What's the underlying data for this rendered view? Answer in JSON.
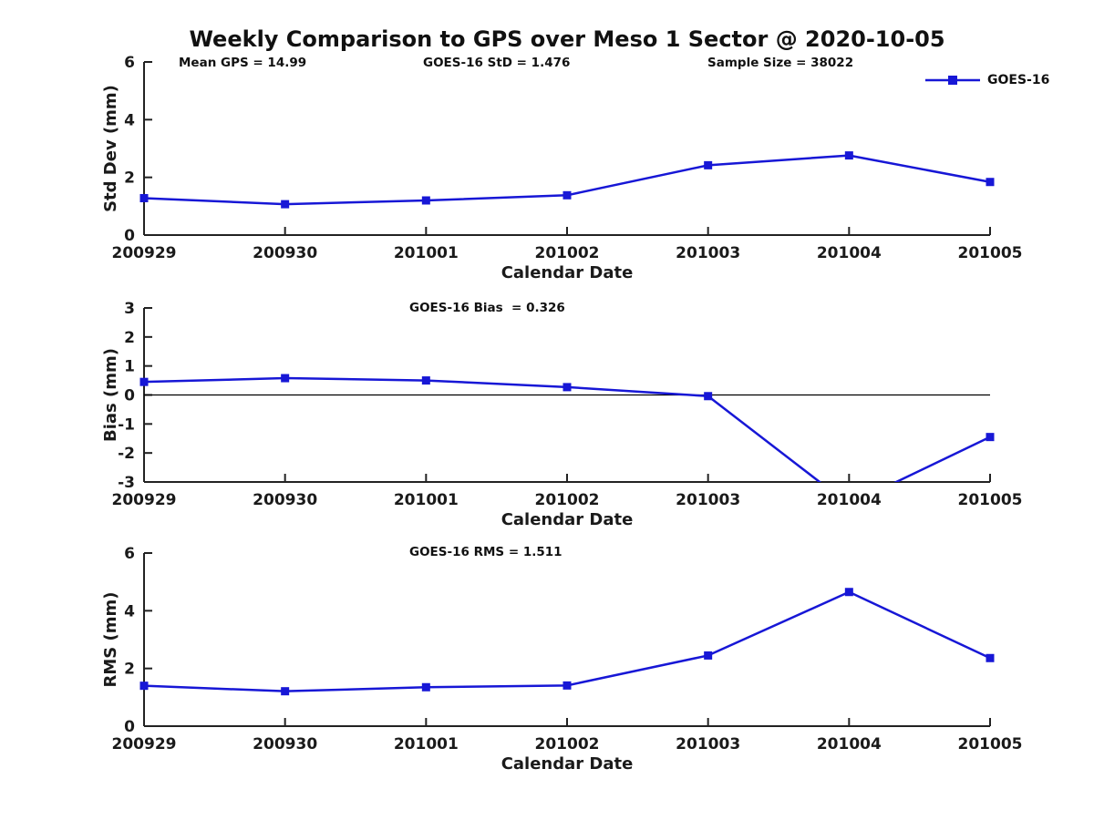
{
  "figure": {
    "title": "Weekly Comparison to GPS over Meso 1 Sector @ 2020-10-05",
    "background": "#ffffff",
    "text_color": "#1a1a1a",
    "series_color": "#1717d6",
    "axis_color": "#222222",
    "legend": {
      "label": "GOES-16"
    },
    "stats": {
      "mean_gps": "Mean GPS = 14.99",
      "goes16_std": "GOES-16 StD = 1.476",
      "sample_size": "Sample Size = 38022",
      "goes16_bias": "GOES-16 Bias  = 0.326",
      "goes16_rms": "GOES-16 RMS = 1.511"
    }
  },
  "chart_data": [
    {
      "type": "line",
      "name": "stddev",
      "ylabel": "Std Dev (mm)",
      "xlabel": "Calendar Date",
      "categories": [
        "200929",
        "200930",
        "201001",
        "201002",
        "201003",
        "201004",
        "201005"
      ],
      "series": [
        {
          "name": "GOES-16",
          "values": [
            1.28,
            1.07,
            1.2,
            1.38,
            2.42,
            2.76,
            1.84
          ]
        }
      ],
      "ylim": [
        0,
        6
      ],
      "yticks": [
        0,
        2,
        4,
        6
      ],
      "zero_line": false,
      "grid": false,
      "legend_position": "top-right-outside",
      "marker": "square"
    },
    {
      "type": "line",
      "name": "bias",
      "ylabel": "Bias (mm)",
      "xlabel": "Calendar Date",
      "categories": [
        "200929",
        "200930",
        "201001",
        "201002",
        "201003",
        "201004",
        "201005"
      ],
      "series": [
        {
          "name": "GOES-16",
          "values": [
            0.45,
            0.58,
            0.5,
            0.27,
            -0.04,
            -3.78,
            -1.45
          ]
        }
      ],
      "ylim": [
        -3,
        3
      ],
      "yticks": [
        3,
        2,
        1,
        0,
        -1,
        -2,
        -3
      ],
      "zero_line": true,
      "grid": false,
      "marker": "square",
      "note": "201004 value lies below axis range and is clipped at -3"
    },
    {
      "type": "line",
      "name": "rms",
      "ylabel": "RMS (mm)",
      "xlabel": "Calendar Date",
      "categories": [
        "200929",
        "200930",
        "201001",
        "201002",
        "201003",
        "201004",
        "201005"
      ],
      "series": [
        {
          "name": "GOES-16",
          "values": [
            1.4,
            1.21,
            1.35,
            1.41,
            2.45,
            4.65,
            2.36
          ]
        }
      ],
      "ylim": [
        0,
        6
      ],
      "yticks": [
        0,
        2,
        4,
        6
      ],
      "zero_line": false,
      "grid": false,
      "marker": "square"
    }
  ]
}
